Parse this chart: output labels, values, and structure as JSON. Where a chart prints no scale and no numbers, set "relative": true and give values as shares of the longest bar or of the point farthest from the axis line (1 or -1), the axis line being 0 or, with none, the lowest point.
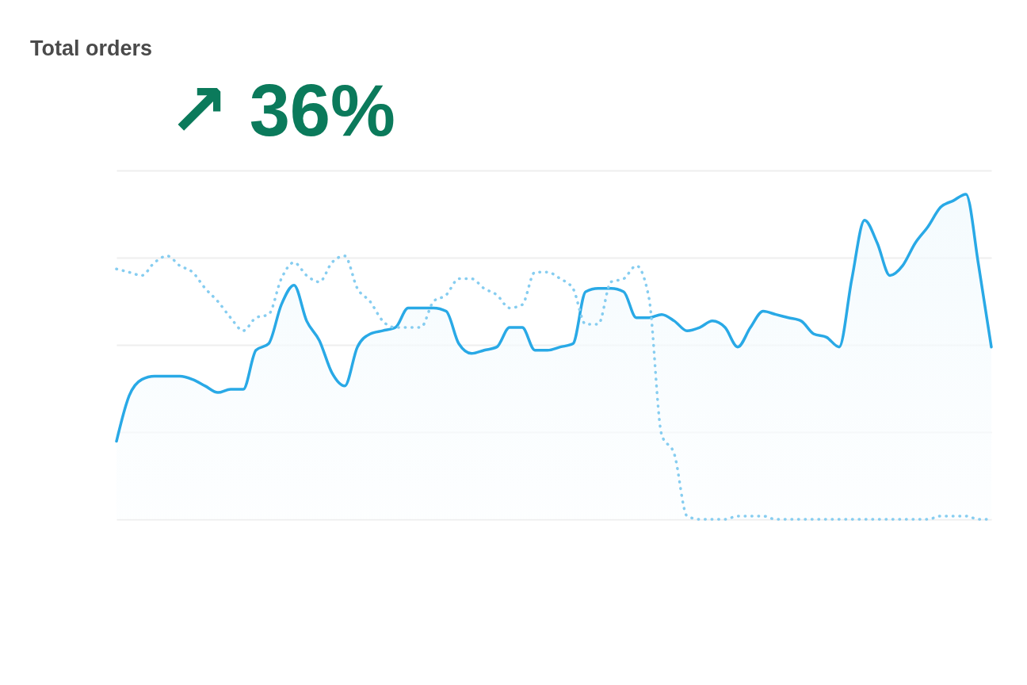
{
  "chart_data": {
    "type": "area",
    "title": "Total orders",
    "relative": true,
    "grid": "y",
    "annotations": [
      "↗ 36%"
    ],
    "categories": [
      null,
      null,
      null,
      null,
      null,
      null,
      null,
      null,
      null,
      null,
      null,
      null,
      null,
      null,
      null,
      null,
      null,
      null,
      null,
      null,
      null,
      null,
      null,
      null,
      null,
      null,
      null,
      null,
      null,
      null,
      null,
      null,
      null,
      null,
      null,
      null,
      null,
      null,
      null,
      null,
      null,
      null,
      null,
      null,
      null,
      null,
      null,
      null,
      null,
      null,
      null,
      null,
      null,
      null,
      null,
      null,
      null,
      null,
      null,
      null,
      null,
      null,
      null,
      null,
      null,
      null,
      null,
      null,
      null,
      null
    ],
    "series": [
      {
        "line_style": "solid",
        "color": "#29a9e6",
        "values": [
          0.24,
          0.38,
          0.43,
          0.44,
          0.44,
          0.44,
          0.43,
          0.41,
          0.39,
          0.4,
          0.4,
          0.52,
          0.54,
          0.66,
          0.72,
          0.61,
          0.55,
          0.45,
          0.41,
          0.53,
          0.57,
          0.58,
          0.59,
          0.65,
          0.65,
          0.65,
          0.64,
          0.54,
          0.51,
          0.52,
          0.53,
          0.59,
          0.59,
          0.52,
          0.52,
          0.53,
          0.54,
          0.7,
          0.71,
          0.71,
          0.7,
          0.62,
          0.62,
          0.63,
          0.61,
          0.58,
          0.59,
          0.61,
          0.59,
          0.53,
          0.59,
          0.64,
          0.63,
          0.62,
          0.61,
          0.57,
          0.56,
          0.53,
          0.74,
          0.92,
          0.85,
          0.75,
          0.78,
          0.85,
          0.9,
          0.96,
          0.98,
          1,
          0.78,
          0.53
        ]
      },
      {
        "type": "line",
        "line_style": "dotted",
        "color": "#86cdf0",
        "values": [
          0.77,
          0.76,
          0.75,
          0.79,
          0.81,
          0.78,
          0.76,
          0.71,
          0.67,
          0.62,
          0.58,
          0.62,
          0.63,
          0.74,
          0.79,
          0.75,
          0.73,
          0.79,
          0.81,
          0.71,
          0.67,
          0.61,
          0.59,
          0.59,
          0.59,
          0.67,
          0.69,
          0.74,
          0.74,
          0.71,
          0.69,
          0.65,
          0.66,
          0.76,
          0.76,
          0.74,
          0.71,
          0.6,
          0.6,
          0.73,
          0.74,
          0.78,
          0.68,
          0.26,
          0.2,
          0.01,
          0,
          0,
          0,
          0.01,
          0.01,
          0.01,
          0,
          0,
          0,
          0,
          0,
          0,
          0,
          0,
          0,
          0,
          0,
          0,
          0,
          0.01,
          0.01,
          0.01,
          0,
          0
        ]
      }
    ]
  }
}
